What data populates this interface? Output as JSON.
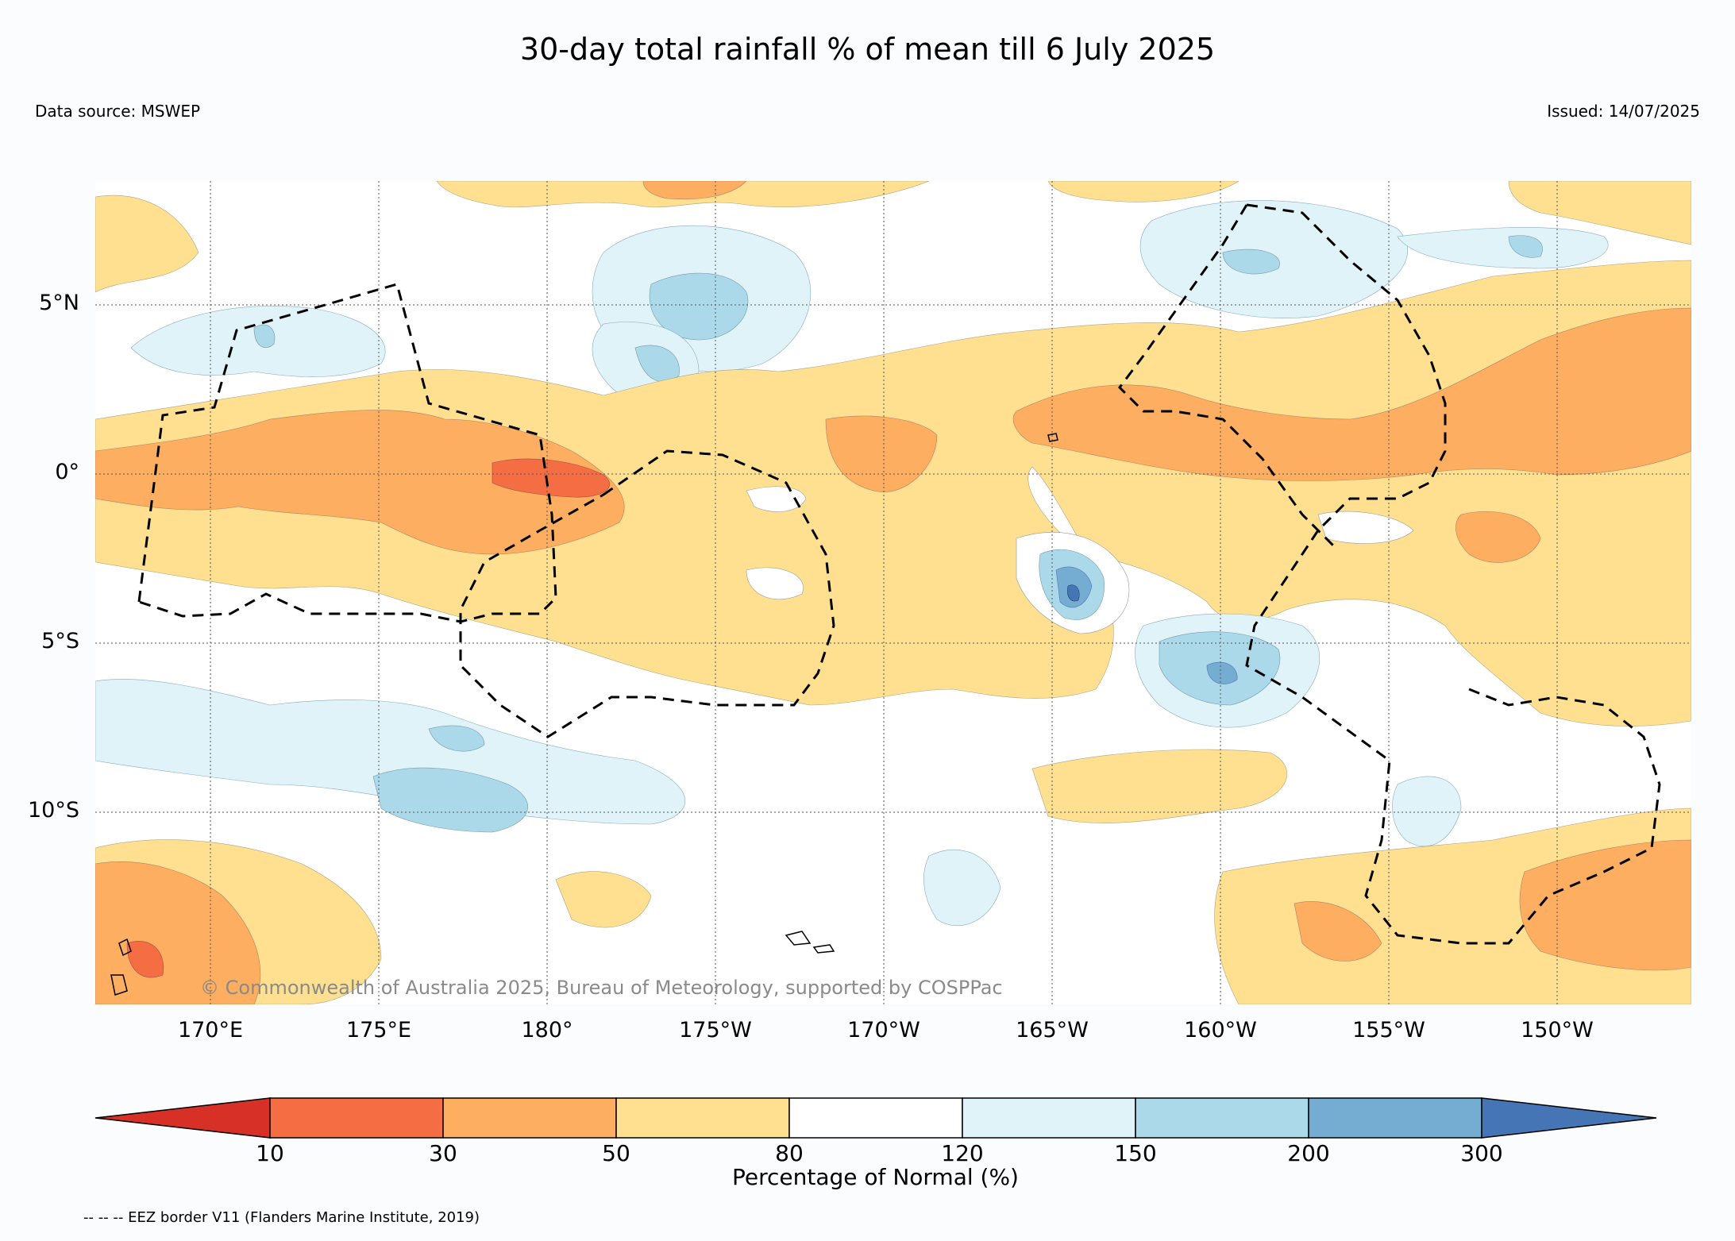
{
  "title": "30-day total rainfall % of mean till 6 July 2025",
  "data_source": "Data source: MSWEP",
  "issued": "Issued: 14/07/2025",
  "copyright": "© Commonwealth of Australia 2025, Bureau of Meteorology, supported by COSPPac",
  "latitude_labels": [
    "5°N",
    "0°",
    "5°S",
    "10°S"
  ],
  "longitude_labels": [
    "170°E",
    "175°E",
    "180°",
    "175°W",
    "170°W",
    "165°W",
    "160°W",
    "155°W",
    "150°W"
  ],
  "colorbar": {
    "title": "Percentage of Normal (%)",
    "tick_labels": [
      "10",
      "30",
      "50",
      "80",
      "120",
      "150",
      "200",
      "300"
    ],
    "colors": [
      "#d73027",
      "#f46d43",
      "#fdae61",
      "#fee090",
      "#ffffff",
      "#e0f3f8",
      "#abd9e9",
      "#74add1",
      "#4575b4"
    ]
  },
  "legend_note": "-- -- -- EEZ border V11 (Flanders Marine Institute, 2019)"
}
